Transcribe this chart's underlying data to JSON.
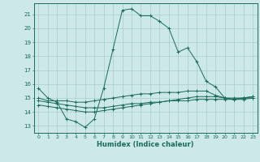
{
  "xlabel": "Humidex (Indice chaleur)",
  "bg_color": "#cce8e8",
  "grid_color": "#aacccc",
  "line_color": "#1a6b5a",
  "xlim": [
    -0.5,
    23.5
  ],
  "ylim": [
    12.5,
    21.8
  ],
  "yticks": [
    13,
    14,
    15,
    16,
    17,
    18,
    19,
    20,
    21
  ],
  "xticks": [
    0,
    1,
    2,
    3,
    4,
    5,
    6,
    7,
    8,
    9,
    10,
    11,
    12,
    13,
    14,
    15,
    16,
    17,
    18,
    19,
    20,
    21,
    22,
    23
  ],
  "series": [
    {
      "x": [
        0,
        1,
        2,
        3,
        4,
        5,
        6,
        7,
        8,
        9,
        10,
        11,
        12,
        13,
        14,
        15,
        16,
        17,
        18,
        19,
        20,
        21,
        22,
        23
      ],
      "y": [
        15.7,
        15.0,
        14.7,
        13.5,
        13.3,
        12.9,
        13.5,
        15.7,
        18.5,
        21.3,
        21.4,
        20.9,
        20.9,
        20.5,
        20.0,
        18.3,
        18.6,
        17.6,
        16.2,
        15.8,
        15.0,
        14.9,
        15.0,
        15.1
      ]
    },
    {
      "x": [
        0,
        1,
        2,
        3,
        4,
        5,
        6,
        7,
        8,
        9,
        10,
        11,
        12,
        13,
        14,
        15,
        16,
        17,
        18,
        19,
        20,
        21,
        22,
        23
      ],
      "y": [
        15.0,
        14.8,
        14.8,
        14.8,
        14.7,
        14.7,
        14.8,
        14.9,
        15.0,
        15.1,
        15.2,
        15.3,
        15.3,
        15.4,
        15.4,
        15.4,
        15.5,
        15.5,
        15.5,
        15.2,
        15.0,
        14.9,
        15.0,
        15.0
      ]
    },
    {
      "x": [
        0,
        1,
        2,
        3,
        4,
        5,
        6,
        7,
        8,
        9,
        10,
        11,
        12,
        13,
        14,
        15,
        16,
        17,
        18,
        19,
        20,
        21,
        22,
        23
      ],
      "y": [
        14.8,
        14.7,
        14.6,
        14.5,
        14.4,
        14.3,
        14.3,
        14.3,
        14.4,
        14.5,
        14.6,
        14.6,
        14.7,
        14.7,
        14.8,
        14.8,
        14.8,
        14.9,
        14.9,
        14.9,
        14.9,
        14.9,
        14.9,
        15.0
      ]
    },
    {
      "x": [
        0,
        1,
        2,
        3,
        4,
        5,
        6,
        7,
        8,
        9,
        10,
        11,
        12,
        13,
        14,
        15,
        16,
        17,
        18,
        19,
        20,
        21,
        22,
        23
      ],
      "y": [
        14.5,
        14.4,
        14.3,
        14.2,
        14.1,
        14.0,
        14.0,
        14.1,
        14.2,
        14.3,
        14.4,
        14.5,
        14.6,
        14.7,
        14.8,
        14.9,
        15.0,
        15.1,
        15.1,
        15.1,
        15.0,
        15.0,
        15.0,
        15.1
      ]
    }
  ]
}
